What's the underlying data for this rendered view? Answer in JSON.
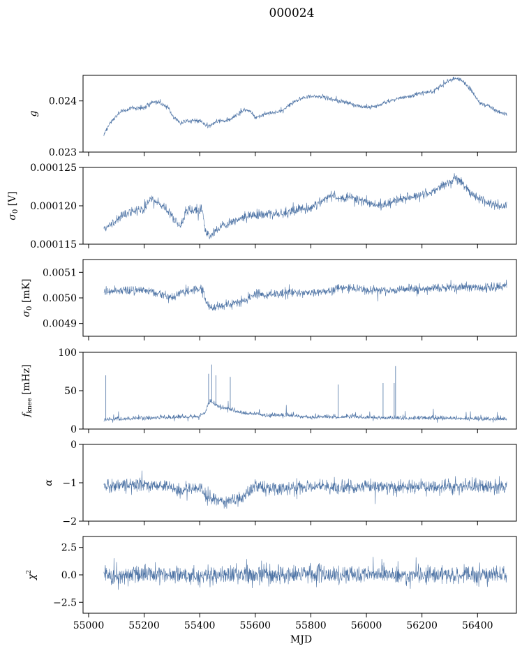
{
  "figure": {
    "title": "000024"
  },
  "style": {
    "series_color": "#4c72a4",
    "axis_color": "#000000",
    "background": "#ffffff"
  },
  "chart_data": [
    {
      "type": "line",
      "ylabel": "g",
      "ylabel_kind": "math",
      "xlim": [
        54980,
        56540
      ],
      "ylim": [
        0.023,
        0.0245
      ],
      "yticks": [
        0.023,
        0.024
      ],
      "ytick_labels": [
        "0.023",
        "0.024"
      ],
      "noise": 4e-05,
      "spike_amp": 6e-05,
      "series": [
        {
          "x": [
            55055,
            55060,
            55080,
            55100,
            55120,
            55150,
            55200,
            55230,
            55260,
            55290,
            55300,
            55330,
            55360,
            55400,
            55430,
            55460,
            55500,
            55530,
            55560,
            55580,
            55600,
            55640,
            55680,
            55700,
            55720,
            55760,
            55800,
            55840,
            55870,
            55900,
            55930,
            55960,
            56000,
            56040,
            56080,
            56120,
            56160,
            56200,
            56240,
            56270,
            56290,
            56310,
            56330,
            56350,
            56380,
            56410,
            56440,
            56470,
            56505
          ],
          "y": [
            0.02333,
            0.0234,
            0.0236,
            0.0237,
            0.0238,
            0.02385,
            0.02387,
            0.02398,
            0.02395,
            0.02386,
            0.0237,
            0.02357,
            0.02361,
            0.02362,
            0.02349,
            0.0236,
            0.02362,
            0.0237,
            0.02383,
            0.02381,
            0.02367,
            0.02375,
            0.02378,
            0.02382,
            0.02392,
            0.02404,
            0.02409,
            0.02409,
            0.02405,
            0.02399,
            0.02398,
            0.02392,
            0.02387,
            0.0239,
            0.024,
            0.02405,
            0.0241,
            0.02416,
            0.02418,
            0.0243,
            0.02438,
            0.02443,
            0.02444,
            0.02437,
            0.02418,
            0.02395,
            0.0239,
            0.0238,
            0.02373
          ]
        }
      ]
    },
    {
      "type": "line",
      "ylabel": "σ₀ [V]",
      "ylabel_kind": "sigma",
      "ylabel_unit": "[V]",
      "xlim": [
        54980,
        56540
      ],
      "ylim": [
        0.000115,
        0.000125
      ],
      "yticks": [
        0.000115,
        0.00012,
        0.000125
      ],
      "ytick_labels": [
        "0.000115",
        "0.000120",
        "0.000125"
      ],
      "noise": 6e-07,
      "spike_amp": 8e-07,
      "series": [
        {
          "x": [
            55055,
            55080,
            55120,
            55160,
            55200,
            55220,
            55240,
            55270,
            55290,
            55310,
            55330,
            55350,
            55380,
            55410,
            55420,
            55440,
            55480,
            55520,
            55560,
            55600,
            55650,
            55700,
            55750,
            55800,
            55850,
            55880,
            55900,
            55950,
            56000,
            56050,
            56100,
            56150,
            56200,
            56250,
            56300,
            56320,
            56340,
            56370,
            56400,
            56440,
            56480,
            56505
          ],
          "y": [
            0.0001168,
            0.0001175,
            0.0001188,
            0.0001193,
            0.0001196,
            0.0001208,
            0.0001205,
            0.0001199,
            0.000119,
            0.0001183,
            0.0001173,
            0.0001192,
            0.0001195,
            0.0001195,
            0.0001167,
            0.000116,
            0.0001174,
            0.000118,
            0.0001186,
            0.0001188,
            0.0001189,
            0.000119,
            0.0001194,
            0.0001198,
            0.0001208,
            0.0001215,
            0.000121,
            0.0001211,
            0.0001205,
            0.00012,
            0.0001206,
            0.000121,
            0.0001215,
            0.0001221,
            0.0001232,
            0.0001235,
            0.0001232,
            0.0001218,
            0.000121,
            0.0001204,
            0.0001199,
            0.0001199
          ]
        }
      ]
    },
    {
      "type": "line",
      "ylabel": "σ₀ [mK]",
      "ylabel_kind": "sigma",
      "ylabel_unit": "[mK]",
      "xlim": [
        54980,
        56540
      ],
      "ylim": [
        0.00485,
        0.00515
      ],
      "yticks": [
        0.0049,
        0.005,
        0.0051
      ],
      "ytick_labels": [
        "0.0049",
        "0.0050",
        "0.0051"
      ],
      "noise": 1.6e-05,
      "spike_amp": 3e-05,
      "series": [
        {
          "x": [
            55055,
            55080,
            55120,
            55160,
            55200,
            55240,
            55280,
            55300,
            55330,
            55370,
            55410,
            55420,
            55440,
            55480,
            55520,
            55560,
            55580,
            55600,
            55640,
            55700,
            55760,
            55820,
            55880,
            55900,
            55950,
            56000,
            56050,
            56100,
            56150,
            56200,
            56250,
            56300,
            56350,
            56400,
            56450,
            56505
          ],
          "y": [
            0.00502,
            0.00502,
            0.00503,
            0.00503,
            0.00503,
            0.00502,
            0.00501,
            0.005,
            0.00502,
            0.00503,
            0.00504,
            0.00499,
            0.00496,
            0.00497,
            0.00498,
            0.00499,
            0.005,
            0.00502,
            0.00501,
            0.00502,
            0.00502,
            0.00502,
            0.00503,
            0.00504,
            0.00504,
            0.00503,
            0.00503,
            0.00503,
            0.00504,
            0.00503,
            0.00504,
            0.00504,
            0.00504,
            0.00504,
            0.00504,
            0.00505
          ]
        }
      ]
    },
    {
      "type": "line",
      "ylabel": "f_knee [mHz]",
      "ylabel_kind": "fknee",
      "ylabel_unit": "[mHz]",
      "xlim": [
        54980,
        56540
      ],
      "ylim": [
        0,
        100
      ],
      "yticks": [
        0,
        50,
        100
      ],
      "ytick_labels": [
        "0",
        "50",
        "100"
      ],
      "noise": 3.5,
      "spike_amp": 12,
      "series": [
        {
          "x": [
            55055,
            55100,
            55200,
            55300,
            55400,
            55420,
            55430,
            55440,
            55460,
            55480,
            55500,
            55530,
            55560,
            55600,
            55640,
            55680,
            55720,
            55760,
            55800,
            55840,
            55880,
            55900,
            55950,
            56000,
            56100,
            56200,
            56300,
            56400,
            56505
          ],
          "y": [
            12,
            13,
            14,
            15,
            16,
            22,
            32,
            36,
            31,
            28,
            26,
            23,
            20,
            20,
            17,
            18,
            18,
            16,
            15,
            16,
            15,
            15,
            16,
            15,
            14,
            14,
            14,
            13,
            13
          ]
        }
      ],
      "peaks": [
        {
          "x": 55062,
          "y": 70
        },
        {
          "x": 55443,
          "y": 84
        },
        {
          "x": 55432,
          "y": 72
        },
        {
          "x": 55458,
          "y": 70
        },
        {
          "x": 55510,
          "y": 68
        },
        {
          "x": 55898,
          "y": 58
        },
        {
          "x": 56060,
          "y": 60
        },
        {
          "x": 56105,
          "y": 82
        },
        {
          "x": 56100,
          "y": 60
        }
      ]
    },
    {
      "type": "line",
      "ylabel": "α",
      "ylabel_kind": "alpha",
      "xlim": [
        54980,
        56540
      ],
      "ylim": [
        -2,
        0
      ],
      "yticks": [
        -2,
        -1,
        0
      ],
      "ytick_labels": [
        "−2",
        "−1",
        "0"
      ],
      "noise": 0.17,
      "spike_amp": 0.28,
      "series": [
        {
          "x": [
            55055,
            55100,
            55200,
            55280,
            55300,
            55330,
            55360,
            55400,
            55420,
            55440,
            55470,
            55500,
            55530,
            55560,
            55580,
            55600,
            55650,
            55700,
            55800,
            55900,
            56000,
            56100,
            56200,
            56300,
            56400,
            56505
          ],
          "y": [
            -1.1,
            -1.06,
            -1.04,
            -1.07,
            -1.15,
            -1.25,
            -1.15,
            -1.1,
            -1.32,
            -1.42,
            -1.5,
            -1.47,
            -1.45,
            -1.32,
            -1.2,
            -1.12,
            -1.12,
            -1.14,
            -1.1,
            -1.11,
            -1.1,
            -1.11,
            -1.1,
            -1.11,
            -1.11,
            -1.1
          ]
        }
      ]
    },
    {
      "type": "line",
      "ylabel": "χ²",
      "ylabel_kind": "chi2",
      "xlabel": "MJD",
      "xlim": [
        54980,
        56540
      ],
      "ylim": [
        -3.5,
        3.5
      ],
      "yticks": [
        -2.5,
        0,
        2.5
      ],
      "ytick_labels": [
        "−2.5",
        "0.0",
        "2.5"
      ],
      "xticks": [
        55000,
        55200,
        55400,
        55600,
        55800,
        56000,
        56200,
        56400
      ],
      "xtick_labels": [
        "55000",
        "55200",
        "55400",
        "55600",
        "55800",
        "56000",
        "56200",
        "56400"
      ],
      "noise": 0.8,
      "spike_amp": 1.6,
      "series": [
        {
          "x": [
            55055,
            56505
          ],
          "y": [
            0,
            0
          ]
        }
      ]
    }
  ]
}
